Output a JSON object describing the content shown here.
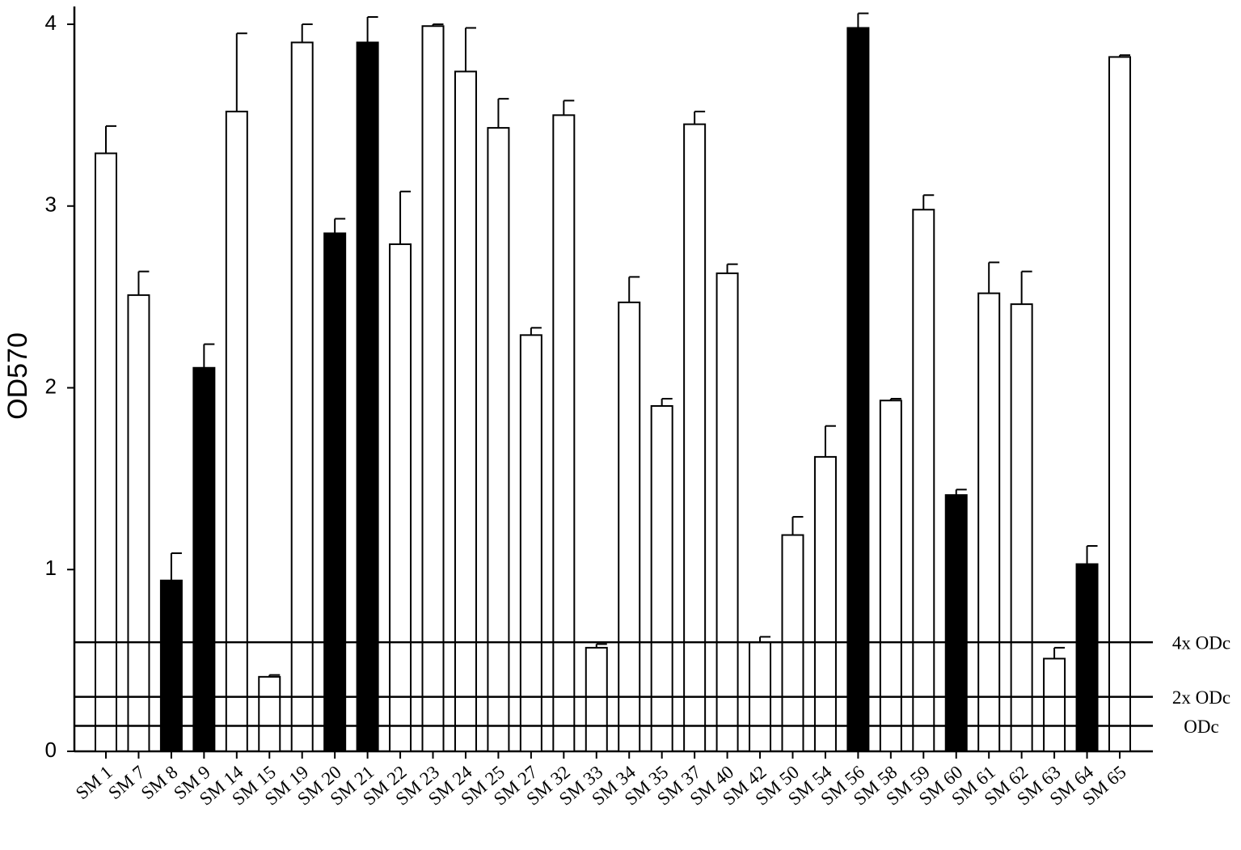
{
  "chart_data": {
    "type": "bar",
    "y_label": "OD570",
    "categories": [
      "SM 1",
      "SM 7",
      "SM 8",
      "SM 9",
      "SM 14",
      "SM 15",
      "SM 19",
      "SM 20",
      "SM 21",
      "SM 22",
      "SM 23",
      "SM 24",
      "SM 25",
      "SM 27",
      "SM 32",
      "SM 33",
      "SM 34",
      "SM 35",
      "SM 37",
      "SM 40",
      "SM 42",
      "SM 50",
      "SM 54",
      "SM 56",
      "SM 58",
      "SM 59",
      "SM 60",
      "SM 61",
      "SM 62",
      "SM 63",
      "SM 64",
      "SM 65"
    ],
    "values": [
      3.29,
      2.51,
      0.94,
      2.11,
      3.52,
      0.41,
      3.9,
      2.85,
      3.9,
      2.79,
      3.99,
      3.74,
      3.43,
      2.29,
      3.5,
      0.57,
      2.47,
      1.9,
      3.45,
      2.63,
      0.6,
      1.19,
      1.62,
      3.98,
      1.93,
      2.98,
      1.41,
      2.52,
      2.46,
      0.51,
      1.03,
      3.82
    ],
    "errors": [
      0.15,
      0.13,
      0.15,
      0.13,
      0.43,
      0.01,
      0.1,
      0.08,
      0.14,
      0.29,
      0.01,
      0.24,
      0.16,
      0.04,
      0.08,
      0.02,
      0.14,
      0.04,
      0.07,
      0.05,
      0.03,
      0.1,
      0.17,
      0.08,
      0.01,
      0.08,
      0.03,
      0.17,
      0.18,
      0.06,
      0.1,
      0.01
    ],
    "colors": [
      "#ffffff",
      "#ffffff",
      "#000000",
      "#000000",
      "#ffffff",
      "#ffffff",
      "#ffffff",
      "#000000",
      "#000000",
      "#ffffff",
      "#ffffff",
      "#ffffff",
      "#ffffff",
      "#ffffff",
      "#ffffff",
      "#ffffff",
      "#ffffff",
      "#ffffff",
      "#ffffff",
      "#ffffff",
      "#ffffff",
      "#ffffff",
      "#ffffff",
      "#000000",
      "#ffffff",
      "#ffffff",
      "#000000",
      "#ffffff",
      "#ffffff",
      "#ffffff",
      "#000000",
      "#ffffff"
    ],
    "reference_lines": [
      {
        "label": "4x ODc",
        "value": 0.6
      },
      {
        "label": "2x ODc",
        "value": 0.3
      },
      {
        "label": "ODc",
        "value": 0.14
      }
    ],
    "ylim": [
      0,
      4
    ],
    "yticks": [
      0,
      1,
      2,
      3,
      4
    ]
  }
}
